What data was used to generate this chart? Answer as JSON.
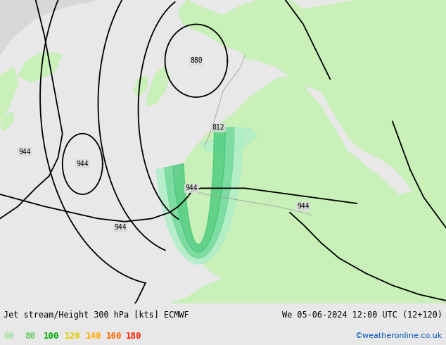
{
  "title_left": "Jet stream/Height 300 hPa [kts] ECMWF",
  "title_right": "We 05-06-2024 12:00 UTC (12+120)",
  "credit": "©weatheronline.co.uk",
  "legend_values": [
    "60",
    "80",
    "100",
    "120",
    "140",
    "160",
    "180"
  ],
  "legend_colors": [
    "#a0e0a0",
    "#66cc66",
    "#00aa00",
    "#ddcc00",
    "#ffaa00",
    "#ff6600",
    "#ff2200"
  ],
  "bg_color": "#e8e8e8",
  "land_color": "#c8f0b8",
  "sea_color": "#dcdcdc",
  "contour_color": "#000000",
  "coast_color": "#a0a0a0",
  "jet_color_light": "#b0eec8",
  "jet_color_mid": "#70d898",
  "jet_color_dark": "#40c878",
  "figsize": [
    6.34,
    4.9
  ],
  "dpi": 100
}
